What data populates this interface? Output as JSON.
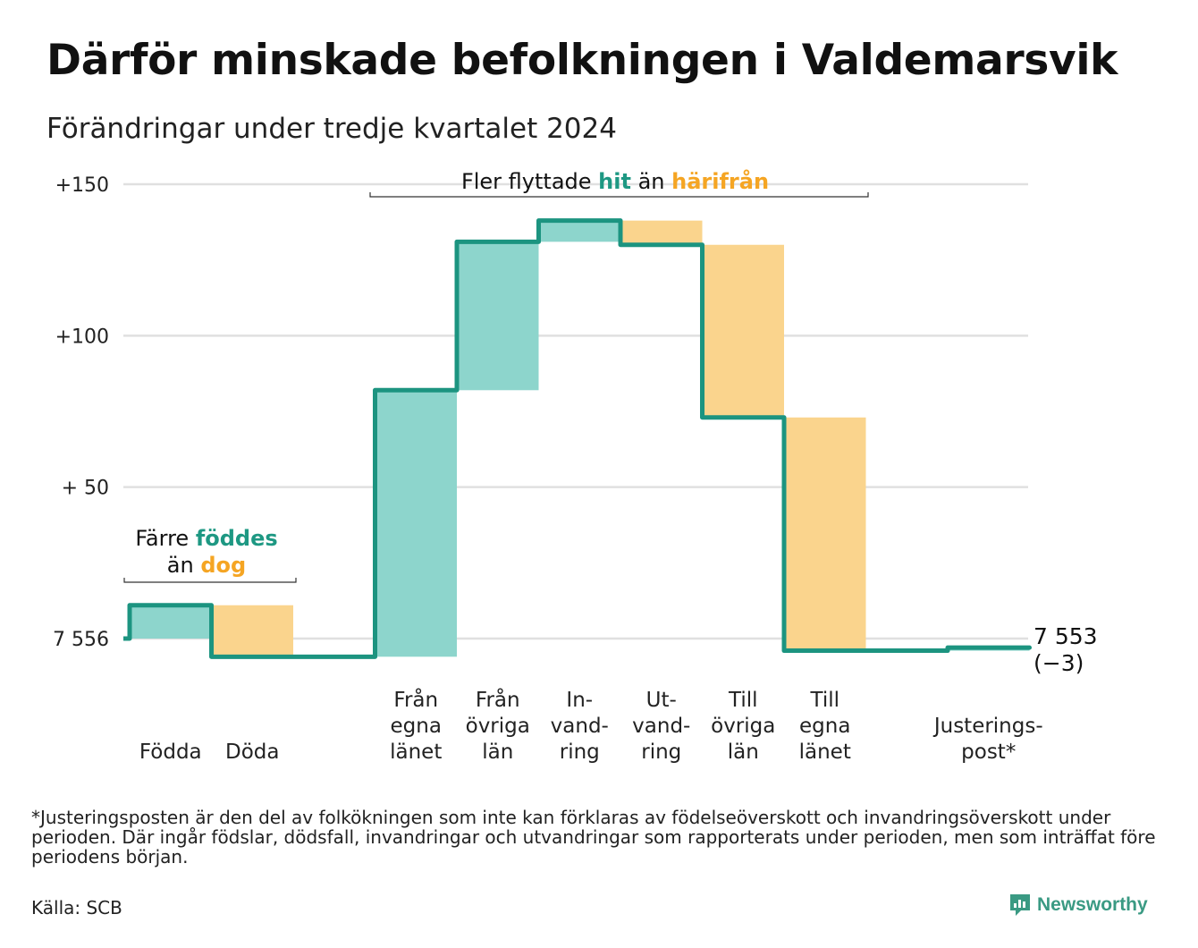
{
  "title": "Därför minskade befolkningen i Valdemarsvik",
  "subtitle": "Förändringar under tredje kvartalet 2024",
  "colors": {
    "increase_fill": "#8dd5cc",
    "decrease_fill": "#fad48d",
    "line": "#1c9480",
    "teal_text": "#1e9883",
    "orange_text": "#f5a523",
    "grid": "#e0e0e0"
  },
  "chart_data": {
    "type": "waterfall",
    "baseline_value": 7556,
    "ylim": [
      -8,
      160
    ],
    "yticks": [
      {
        "value": 0,
        "label": "7 556"
      },
      {
        "value": 50,
        "label": "+ 50"
      },
      {
        "value": 100,
        "label": "+100"
      },
      {
        "value": 150,
        "label": "+150"
      }
    ],
    "steps": [
      {
        "label": [
          "Födda"
        ],
        "value": 11
      },
      {
        "label": [
          "Döda"
        ],
        "value": -17
      },
      {
        "label": [],
        "value": 0,
        "spacer": true
      },
      {
        "label": [
          "Från",
          "egna",
          "länet"
        ],
        "value": 88
      },
      {
        "label": [
          "Från",
          "övriga",
          "län"
        ],
        "value": 49
      },
      {
        "label": [
          "In-",
          "vand-",
          "ring"
        ],
        "value": 7
      },
      {
        "label": [
          "Ut-",
          "vand-",
          "ring"
        ],
        "value": -8
      },
      {
        "label": [
          "Till",
          "övriga",
          "län"
        ],
        "value": -57
      },
      {
        "label": [
          "Till",
          "egna",
          "länet"
        ],
        "value": -77
      },
      {
        "label": [],
        "value": 0,
        "spacer": true
      },
      {
        "label": [
          "Justerings-",
          "post*"
        ],
        "value": 1
      }
    ],
    "end_label": [
      "7 553",
      "(−3)"
    ],
    "annotations": [
      {
        "id": "births",
        "parts": [
          {
            "line": 0,
            "segments": [
              {
                "text": "Färre ",
                "style": "normal"
              },
              {
                "text": "föddes",
                "style": "teal"
              }
            ]
          },
          {
            "line": 1,
            "segments": [
              {
                "text": "än ",
                "style": "normal"
              },
              {
                "text": "dog",
                "style": "orange"
              }
            ]
          }
        ]
      },
      {
        "id": "migration",
        "parts": [
          {
            "line": 0,
            "segments": [
              {
                "text": "Fler flyttade ",
                "style": "normal"
              },
              {
                "text": "hit",
                "style": "teal"
              },
              {
                "text": " än ",
                "style": "normal"
              },
              {
                "text": "härifrån",
                "style": "orange"
              }
            ]
          }
        ]
      }
    ]
  },
  "footnote": "*Justeringsposten är den del av folkökningen som inte kan förklaras av födelseöverskott och invandringsöverskott under perioden. Där ingår födslar, dödsfall, invandringar och utvandringar som rapporterats under perioden, men som inträffat före periodens början.",
  "source": "Källa: SCB",
  "brand": {
    "name": "Newsworthy",
    "logo_icon": "newsworthy-logo-icon"
  }
}
